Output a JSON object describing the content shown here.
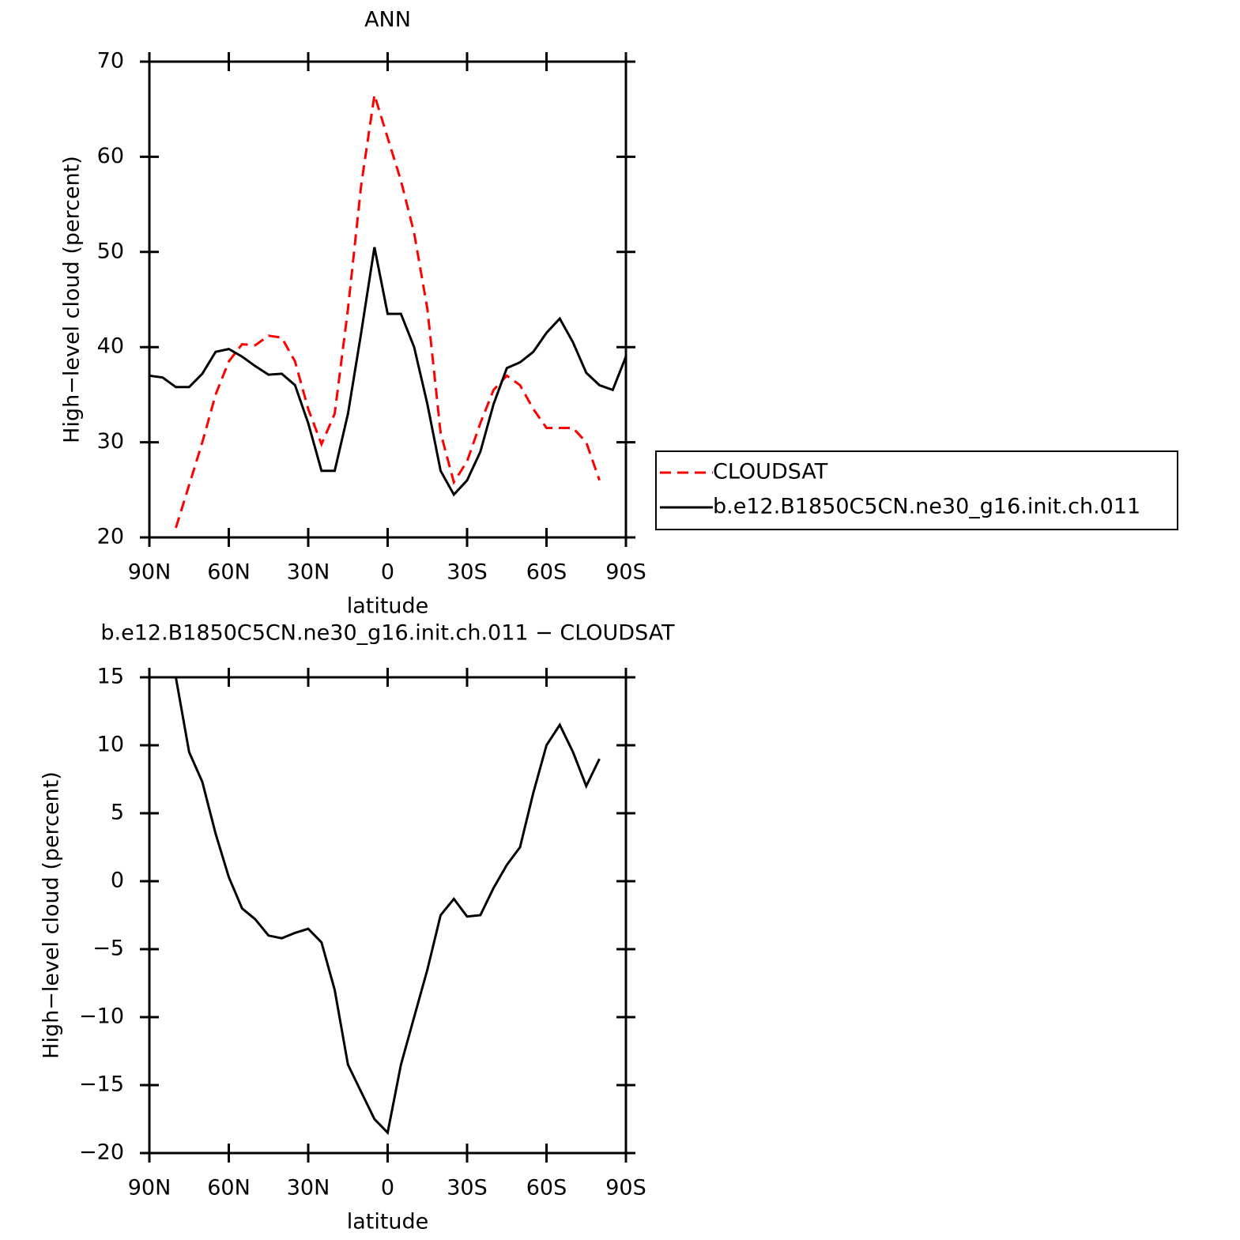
{
  "chart_data": [
    {
      "type": "line",
      "title": "ANN",
      "x_label": "latitude",
      "y_label": "High−level cloud (percent)",
      "x": [
        90,
        85,
        80,
        75,
        70,
        65,
        60,
        55,
        50,
        45,
        40,
        35,
        30,
        25,
        20,
        15,
        10,
        5,
        0,
        -5,
        -10,
        -15,
        -20,
        -25,
        -30,
        -35,
        -40,
        -45,
        -50,
        -55,
        -60,
        -65,
        -70,
        -75,
        -80,
        -85,
        -90
      ],
      "xlim": [
        90,
        -90
      ],
      "xticks": [
        {
          "value": 90,
          "label": "90N"
        },
        {
          "value": 60,
          "label": "60N"
        },
        {
          "value": 30,
          "label": "30N"
        },
        0,
        {
          "value": -30,
          "label": "30S"
        },
        {
          "value": -60,
          "label": "60S"
        },
        {
          "value": -90,
          "label": "90S"
        }
      ],
      "ylim": [
        20,
        70
      ],
      "yticks": [
        20,
        30,
        40,
        50,
        60,
        70
      ],
      "legend": "right",
      "series": [
        {
          "name": "CLOUDSAT",
          "color": "#ff0000",
          "dashed": true,
          "values": [
            null,
            null,
            21,
            25.5,
            30,
            35,
            38.5,
            40.3,
            40.2,
            41.2,
            41,
            38.5,
            33.5,
            29.8,
            33,
            44,
            57,
            66.5,
            62,
            57.5,
            52,
            44,
            31,
            25.8,
            28,
            32,
            35.5,
            37,
            36,
            33.5,
            31.5,
            31.5,
            31.5,
            30,
            26,
            null,
            null
          ]
        },
        {
          "name": "b.e12.B1850C5CN.ne30_g16.init.ch.011",
          "color": "#000000",
          "dashed": false,
          "values": [
            37,
            36.8,
            35.8,
            35.8,
            37.2,
            39.5,
            39.8,
            39,
            38,
            37.1,
            37.2,
            36,
            32,
            27,
            27,
            33,
            41.5,
            50.5,
            43.5,
            43.5,
            40,
            34,
            27,
            24.5,
            26,
            29,
            34,
            37.8,
            38.4,
            39.5,
            41.5,
            43,
            40.5,
            37.3,
            36,
            35.5,
            39
          ]
        }
      ]
    },
    {
      "type": "line",
      "title": "b.e12.B1850C5CN.ne30_g16.init.ch.011 − CLOUDSAT",
      "x_label": "latitude",
      "y_label": "High−level cloud (percent)",
      "x": [
        90,
        85,
        80,
        75,
        70,
        65,
        60,
        55,
        50,
        45,
        40,
        35,
        30,
        25,
        20,
        15,
        10,
        5,
        0,
        -5,
        -10,
        -15,
        -20,
        -25,
        -30,
        -35,
        -40,
        -45,
        -50,
        -55,
        -60,
        -65,
        -70,
        -75,
        -80,
        -85,
        -90
      ],
      "xlim": [
        90,
        -90
      ],
      "xticks": [
        {
          "value": 90,
          "label": "90N"
        },
        {
          "value": 60,
          "label": "60N"
        },
        {
          "value": 30,
          "label": "30N"
        },
        0,
        {
          "value": -30,
          "label": "30S"
        },
        {
          "value": -60,
          "label": "60S"
        },
        {
          "value": -90,
          "label": "90S"
        }
      ],
      "ylim": [
        -20,
        15
      ],
      "yticks": [
        {
          "value": -20,
          "label": "−20"
        },
        {
          "value": -15,
          "label": "−15"
        },
        {
          "value": -10,
          "label": "−10"
        },
        {
          "value": -5,
          "label": "−5"
        },
        0,
        5,
        10,
        15
      ],
      "series": [
        {
          "color": "#000000",
          "dashed": false,
          "values": [
            null,
            null,
            15,
            9.5,
            7.3,
            3.5,
            0.3,
            -2,
            -2.8,
            -4,
            -4.2,
            -3.8,
            -3.5,
            -4.5,
            -8,
            -13.5,
            -15.5,
            -17.5,
            -18.5,
            -13.5,
            -10,
            -6.5,
            -2.5,
            -1.3,
            -2.6,
            -2.5,
            -0.5,
            1.2,
            2.5,
            6.5,
            10,
            11.5,
            9.5,
            7,
            9,
            null,
            null
          ]
        }
      ]
    }
  ]
}
